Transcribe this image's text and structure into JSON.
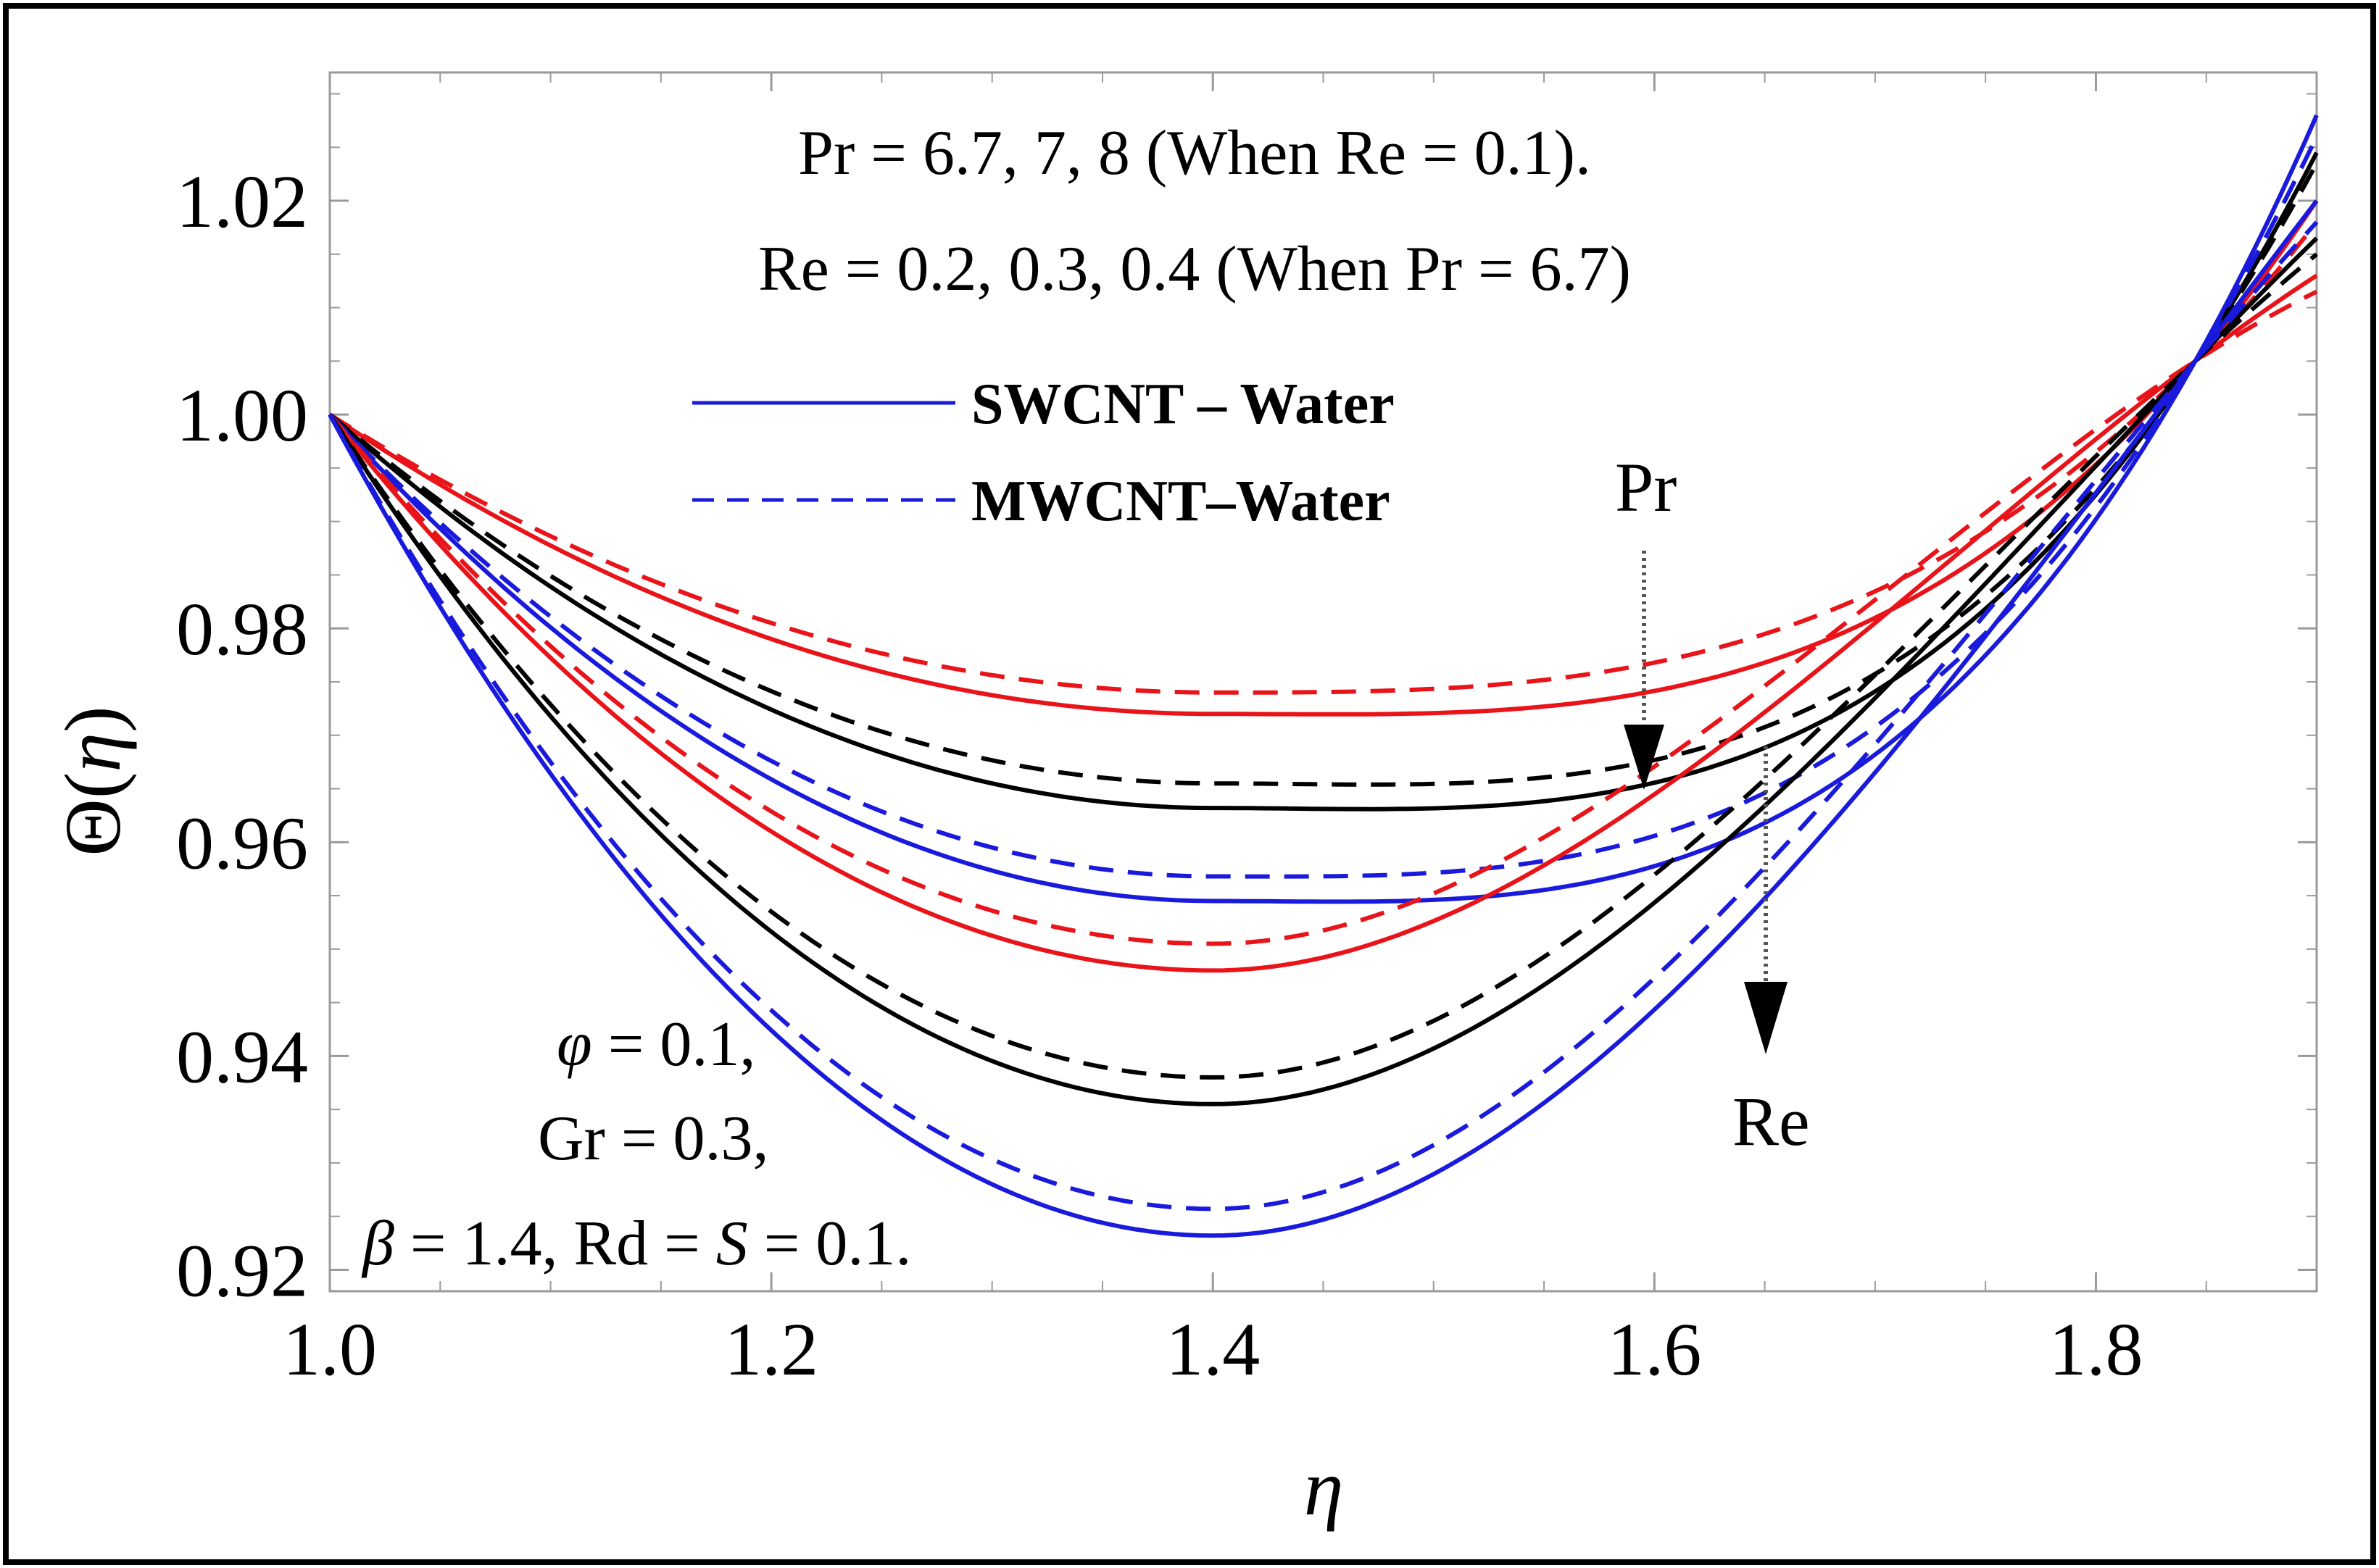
{
  "chart_data": {
    "type": "line",
    "xlabel": "η",
    "ylabel_prefix": "Θ(",
    "ylabel_var": "η",
    "ylabel_suffix": ")",
    "xlim": [
      1.0,
      1.9
    ],
    "ylim": [
      0.918,
      1.032
    ],
    "xticks": [
      1.0,
      1.2,
      1.4,
      1.6,
      1.8
    ],
    "xtick_labels": [
      "1.0",
      "1.2",
      "1.4",
      "1.6",
      "1.8"
    ],
    "yticks": [
      0.92,
      0.94,
      0.96,
      0.98,
      1.0,
      1.02
    ],
    "ytick_labels": [
      "0.92",
      "0.94",
      "0.96",
      "0.98",
      "1.00",
      "1.02"
    ],
    "colors": {
      "red": "#e8141a",
      "black": "#000000",
      "blue": "#1a1adc"
    },
    "series": [
      {
        "name": "SWCNT - Water (red, upper)",
        "color": "#e8141a",
        "dash": false,
        "min": 0.972,
        "end": 1.02
      },
      {
        "name": "MWCNT-Water (red, upper)",
        "color": "#e8141a",
        "dash": true,
        "min": 0.974,
        "end": 1.018
      },
      {
        "name": "SWCNT - Water (black, upper)",
        "color": "#000000",
        "dash": false,
        "min": 0.9632,
        "end": 1.0245
      },
      {
        "name": "MWCNT-Water (black, upper)",
        "color": "#000000",
        "dash": true,
        "min": 0.9655,
        "end": 1.0235
      },
      {
        "name": "SWCNT - Water (blue, upper)",
        "color": "#1a1adc",
        "dash": false,
        "min": 0.9545,
        "end": 1.028
      },
      {
        "name": "MWCNT-Water (blue, upper)",
        "color": "#1a1adc",
        "dash": true,
        "min": 0.9568,
        "end": 1.026
      },
      {
        "name": "SWCNT - Water (red, lower)",
        "color": "#e8141a",
        "dash": false,
        "min": 0.948,
        "end": 1.013
      },
      {
        "name": "MWCNT-Water (red, lower)",
        "color": "#e8141a",
        "dash": true,
        "min": 0.9505,
        "end": 1.0115
      },
      {
        "name": "SWCNT - Water (black, lower)",
        "color": "#000000",
        "dash": false,
        "min": 0.9355,
        "end": 1.0165
      },
      {
        "name": "MWCNT-Water (black, lower)",
        "color": "#000000",
        "dash": true,
        "min": 0.938,
        "end": 1.015
      },
      {
        "name": "SWCNT - Water (blue, lower)",
        "color": "#1a1adc",
        "dash": false,
        "min": 0.9232,
        "end": 1.02
      },
      {
        "name": "MWCNT-Water (blue, lower)",
        "color": "#1a1adc",
        "dash": true,
        "min": 0.9257,
        "end": 1.018
      }
    ],
    "curve_x_min": 1.4,
    "curve_x_end": 1.9,
    "crossing": {
      "x": 1.845,
      "y": 1.005
    }
  },
  "annotations": {
    "line1": "Pr = 6.7, 7,  8 (When Re = 0.1).",
    "line2": "Re = 0.2, 0.3, 0.4 (When Pr = 6.7)",
    "params_phi_sym": "φ",
    "params_phi_val": " = 0.1,",
    "params_gr": "Gr = 0.3,",
    "params_beta_sym": "β",
    "params_beta_mid": " = 1.4, Rd = ",
    "params_s_sym": "S",
    "params_s_val": " = 0.1.",
    "arrow_pr_label": "Pr",
    "arrow_re_label": "Re"
  },
  "legend": {
    "solid_label": "SWCNT – Water",
    "dashed_label": "MWCNT–Water",
    "line_color": "#1a1adc"
  }
}
